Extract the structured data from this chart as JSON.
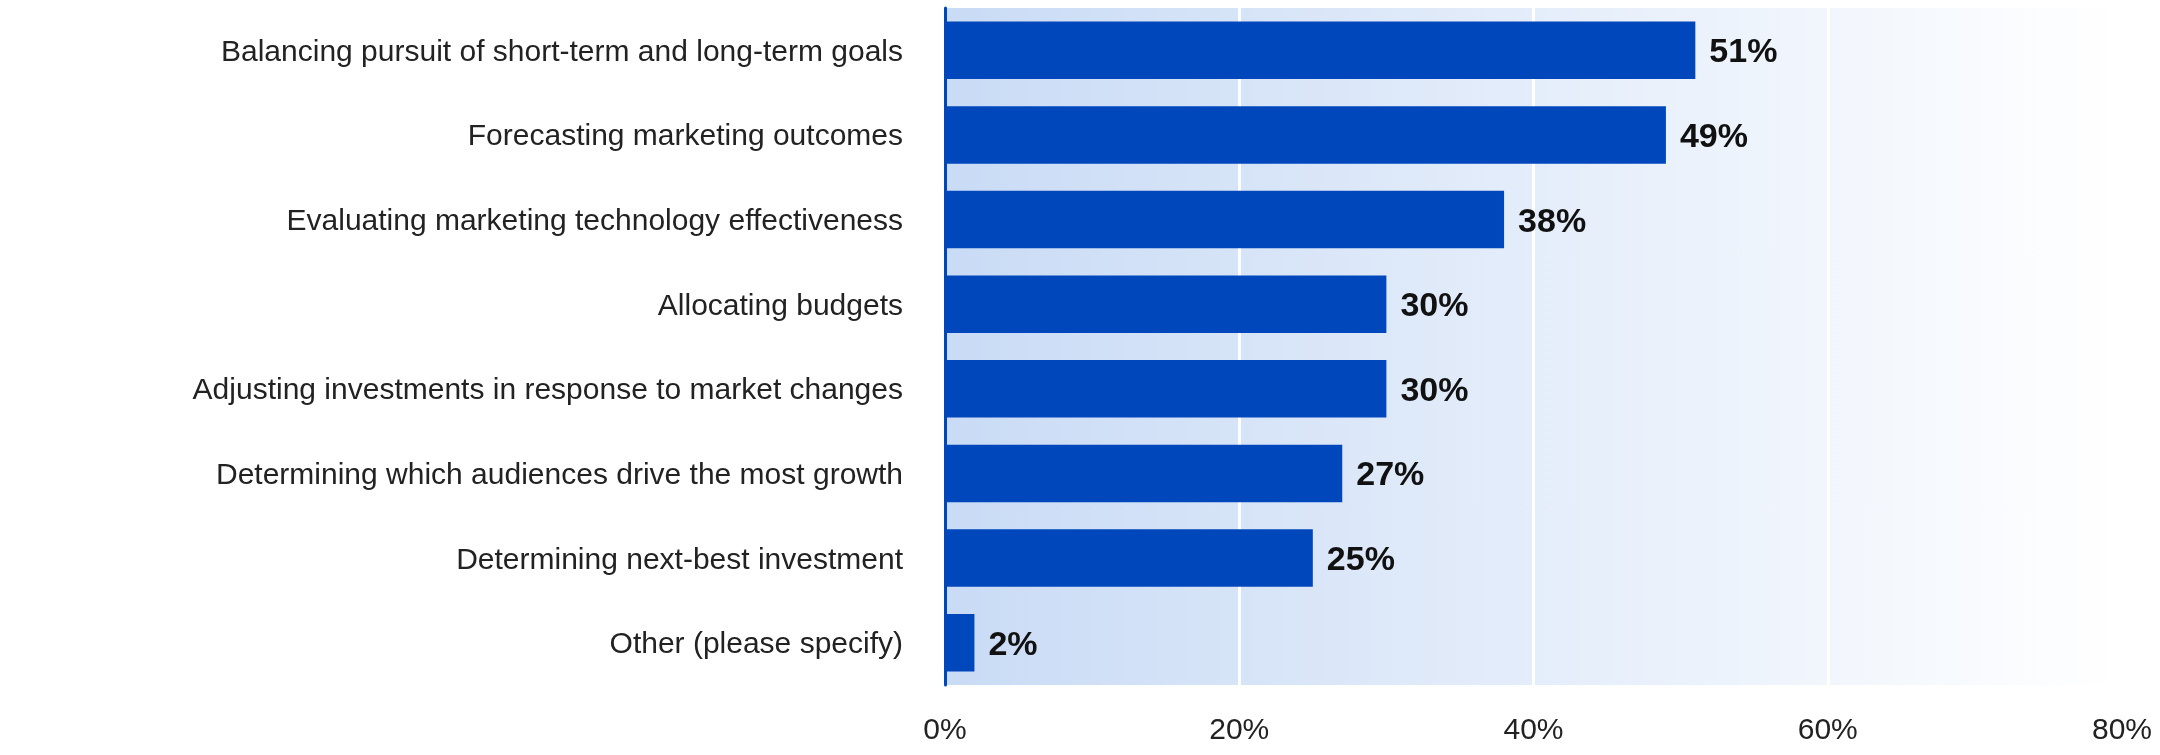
{
  "chart_data": {
    "type": "bar",
    "orientation": "horizontal",
    "categories": [
      "Balancing pursuit of short-term and long-term goals",
      "Forecasting marketing outcomes",
      "Evaluating marketing technology effectiveness",
      "Allocating budgets",
      "Adjusting investments in response to market changes",
      "Determining which audiences drive the most growth",
      "Determining next-best investment",
      "Other (please specify)"
    ],
    "values": [
      51,
      49,
      38,
      30,
      30,
      27,
      25,
      2
    ],
    "color": "#0047bb",
    "xlim": [
      0,
      80
    ],
    "xticks": [
      {
        "value": 0,
        "label": "0%"
      },
      {
        "value": 20,
        "label": "20%"
      },
      {
        "value": 40,
        "label": "40%"
      },
      {
        "value": 60,
        "label": "60%"
      },
      {
        "value": 80,
        "label": "80%"
      }
    ],
    "value_labels": [
      "51%",
      "49%",
      "38%",
      "30%",
      "30%",
      "27%",
      "25%",
      "2%"
    ],
    "grid": "x"
  }
}
